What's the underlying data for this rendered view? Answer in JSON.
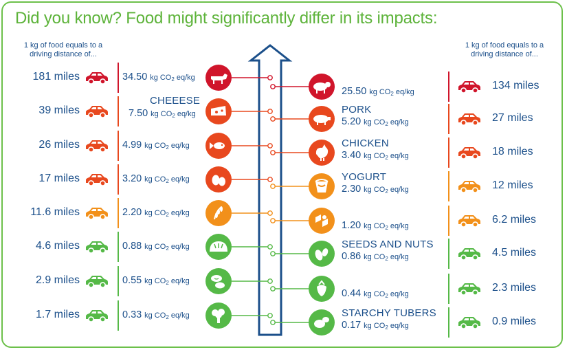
{
  "title": "Did you know? Food might significantly differ in its impacts:",
  "note_left": "1 kg of food equals to a driving distance of...",
  "note_right": "1 kg of food equals to a driving distance of...",
  "unit_main": "kg CO",
  "unit_sub": "2",
  "unit_tail": "eq/kg",
  "colors": {
    "red": "#d0152b",
    "orange_red": "#e8481e",
    "orange": "#f2901a",
    "green": "#55b947",
    "navy": "#1b4f8a",
    "frame": "#6cc04a"
  },
  "left": [
    {
      "miles": "181 miles",
      "value": "34.50",
      "name": "",
      "icon": "cow-icon",
      "color": "#d0152b"
    },
    {
      "miles": "39 miles",
      "value": "7.50",
      "name": "CHEEESE",
      "icon": "cheese-icon",
      "color": "#e8481e"
    },
    {
      "miles": "26 miles",
      "value": "4.99",
      "name": "",
      "icon": "fish-icon",
      "color": "#e8481e"
    },
    {
      "miles": "17 miles",
      "value": "3.20",
      "name": "",
      "icon": "eggs-icon",
      "color": "#e8481e"
    },
    {
      "miles": "11.6 miles",
      "value": "2.20",
      "name": "",
      "icon": "rice-icon",
      "color": "#f2901a"
    },
    {
      "miles": "4.6 miles",
      "value": "0.88",
      "name": "",
      "icon": "bread-icon",
      "color": "#55b947"
    },
    {
      "miles": "2.9 miles",
      "value": "0.55",
      "name": "",
      "icon": "beans-icon",
      "color": "#55b947"
    },
    {
      "miles": "1.7 miles",
      "value": "0.33",
      "name": "",
      "icon": "broccoli-icon",
      "color": "#55b947"
    }
  ],
  "right": [
    {
      "miles": "134 miles",
      "value": "25.50",
      "name": "",
      "icon": "sheep-icon",
      "color": "#d0152b"
    },
    {
      "miles": "27 miles",
      "value": "5.20",
      "name": "PORK",
      "icon": "pig-icon",
      "color": "#e8481e"
    },
    {
      "miles": "18 miles",
      "value": "3.40",
      "name": "CHICKEN",
      "icon": "chicken-icon",
      "color": "#e8481e"
    },
    {
      "miles": "12 miles",
      "value": "2.30",
      "name": "YOGURT",
      "icon": "yogurt-icon",
      "color": "#f2901a"
    },
    {
      "miles": "6.2 miles",
      "value": "1.20",
      "name": "",
      "icon": "pasta-icon",
      "color": "#f2901a"
    },
    {
      "miles": "4.5 miles",
      "value": "0.86",
      "name": "SEEDS AND NUTS",
      "icon": "nuts-icon",
      "color": "#55b947"
    },
    {
      "miles": "2.3 miles",
      "value": "0.44",
      "name": "",
      "icon": "strawberry-icon",
      "color": "#55b947"
    },
    {
      "miles": "0.9 miles",
      "value": "0.17",
      "name": "STARCHY TUBERS",
      "icon": "potato-icon",
      "color": "#55b947"
    }
  ]
}
